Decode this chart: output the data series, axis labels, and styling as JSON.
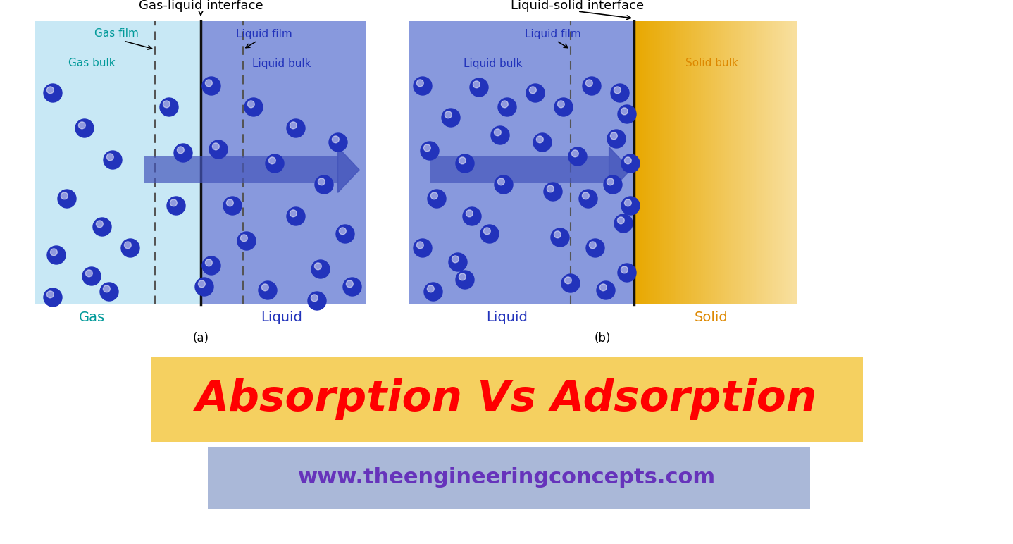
{
  "fig_width": 14.38,
  "fig_height": 7.72,
  "bg_color": "#ffffff",
  "title_text": "Absorption Vs Adsorption",
  "title_color": "#ff0000",
  "title_bg_color": "#f5d060",
  "website_text": "www.theengineeringconcepts.com",
  "website_color": "#6633bb",
  "website_bg_color": "#aab8d8",
  "diagram_a_title": "Gas-liquid interface",
  "diagram_b_title": "Liquid-solid interface",
  "gas_film_label": "Gas film",
  "liquid_film_label_a": "Liquid film",
  "liquid_film_label_b": "Liquid film",
  "gas_bulk_label": "Gas bulk",
  "liquid_bulk_label_a": "Liquid bulk",
  "liquid_bulk_label_b": "Liquid bulk",
  "solid_bulk_label": "Solid bulk",
  "gas_label": "Gas",
  "liquid_label_a": "Liquid",
  "liquid_label_b": "Liquid",
  "solid_label": "Solid",
  "a_label": "(a)",
  "b_label": "(b)",
  "cyan_color": "#009999",
  "blue_color": "#2233bb",
  "orange_color": "#dd8800",
  "gas_bg_color": "#c8e8f5",
  "liquid_bg_color": "#8899dd",
  "solid_bg_color_left": "#e8a800",
  "solid_bg_color_right": "#f8e0a0",
  "interface_line_color": "#111111",
  "dashed_line_color": "#555555",
  "arrow_color": "#4455bb",
  "ball_color": "#2233bb",
  "ball_highlight": "#ffffff"
}
